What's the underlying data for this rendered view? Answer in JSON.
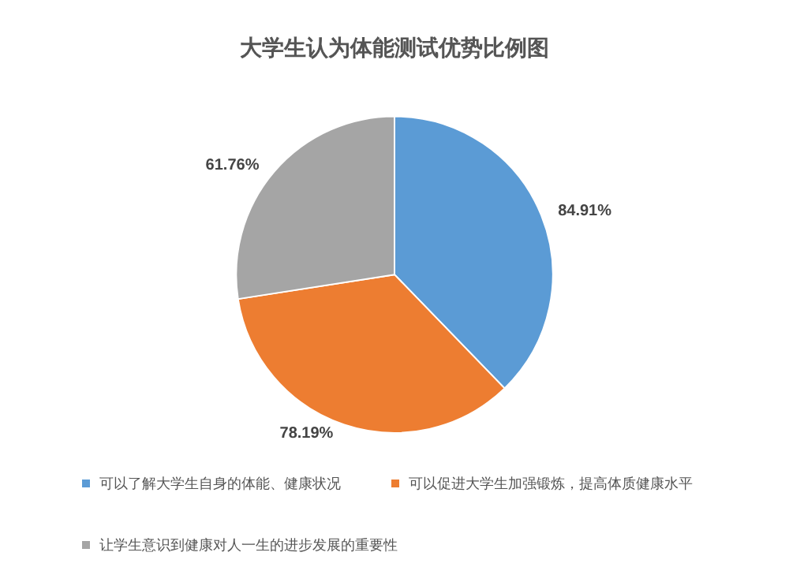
{
  "chart_data": {
    "type": "pie",
    "title": "大学生认为体能测试优势比例图",
    "categories": [
      "可以了解大学生自身的体能、健康状况",
      "可以促进大学生加强锻炼，提高体质健康水平",
      "让学生意识到健康对人一生的进步发展的重要性"
    ],
    "values": [
      84.91,
      78.19,
      61.76
    ],
    "value_labels": [
      "84.91%",
      "78.19%",
      "61.76%"
    ],
    "colors": [
      "#5b9bd5",
      "#ed7d31",
      "#a5a5a5"
    ],
    "legend": "bottom"
  }
}
